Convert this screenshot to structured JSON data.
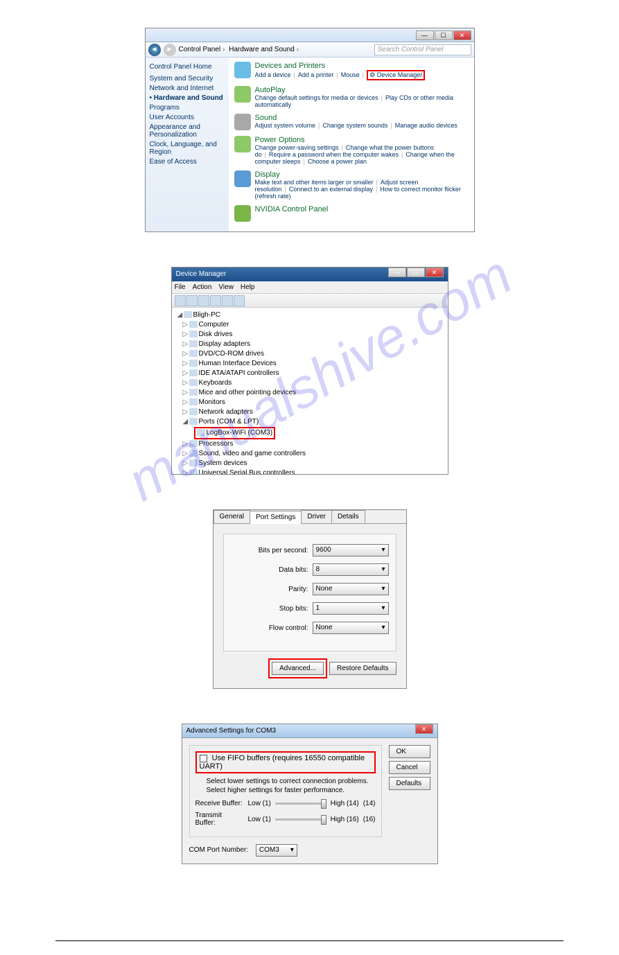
{
  "watermark": "manualshive.com",
  "fig1": {
    "breadcrumb": [
      "Control Panel",
      "Hardware and Sound"
    ],
    "search_placeholder": "Search Control Panel",
    "side_header": "Control Panel Home",
    "side_items": [
      "System and Security",
      "Network and Internet",
      "Hardware and Sound",
      "Programs",
      "User Accounts",
      "Appearance and Personalization",
      "Clock, Language, and Region",
      "Ease of Access"
    ],
    "side_active": 2,
    "categories": [
      {
        "title": "Devices and Printers",
        "icon": "#6bbde6",
        "links": [
          "Add a device",
          "Add a printer",
          "Mouse",
          "Device Manager"
        ],
        "highlight_index": 3
      },
      {
        "title": "AutoPlay",
        "icon": "#8ec967",
        "links": [
          "Change default settings for media or devices",
          "Play CDs or other media automatically"
        ]
      },
      {
        "title": "Sound",
        "icon": "#a8a8a8",
        "links": [
          "Adjust system volume",
          "Change system sounds",
          "Manage audio devices"
        ]
      },
      {
        "title": "Power Options",
        "icon": "#8ec967",
        "links": [
          "Change power-saving settings",
          "Change what the power buttons do",
          "Require a password when the computer wakes",
          "Change when the computer sleeps",
          "Choose a power plan"
        ]
      },
      {
        "title": "Display",
        "icon": "#5b9bd5",
        "links": [
          "Make text and other items larger or smaller",
          "Adjust screen resolution",
          "Connect to an external display",
          "How to correct monitor flicker (refresh rate)"
        ]
      },
      {
        "title": "NVIDIA Control Panel",
        "icon": "#7ab648",
        "links": []
      }
    ]
  },
  "fig2": {
    "title": "Device Manager",
    "menus": [
      "File",
      "Action",
      "View",
      "Help"
    ],
    "root": "Bligh-PC",
    "nodes": [
      "Computer",
      "Disk drives",
      "Display adapters",
      "DVD/CD-ROM drives",
      "Human Interface Devices",
      "IDE ATA/ATAPI controllers",
      "Keyboards",
      "Mice and other pointing devices",
      "Monitors",
      "Network adapters",
      "Ports (COM & LPT)",
      "Processors",
      "Sound, video and game controllers",
      "System devices",
      "Universal Serial Bus controllers"
    ],
    "ports_child": "LogBox-WiFi (COM3)",
    "ports_index": 10
  },
  "fig3": {
    "tabs": [
      "General",
      "Port Settings",
      "Driver",
      "Details"
    ],
    "active_tab": 1,
    "fields": [
      {
        "label": "Bits per second:",
        "value": "9600"
      },
      {
        "label": "Data bits:",
        "value": "8"
      },
      {
        "label": "Parity:",
        "value": "None"
      },
      {
        "label": "Stop bits:",
        "value": "1"
      },
      {
        "label": "Flow control:",
        "value": "None"
      }
    ],
    "btn_advanced": "Advanced...",
    "btn_restore": "Restore Defaults"
  },
  "fig4": {
    "title": "Advanced Settings for COM3",
    "fifo_label": "Use FIFO buffers (requires 16550 compatible UART)",
    "hint1": "Select lower settings to correct connection problems.",
    "hint2": "Select higher settings for faster performance.",
    "rx_label": "Receive Buffer:",
    "rx_low": "Low (1)",
    "rx_high": "High (14)",
    "rx_val": "(14)",
    "tx_label": "Transmit Buffer:",
    "tx_low": "Low (1)",
    "tx_high": "High (16)",
    "tx_val": "(16)",
    "port_label": "COM Port Number:",
    "port_value": "COM3",
    "btn_ok": "OK",
    "btn_cancel": "Cancel",
    "btn_defaults": "Defaults"
  }
}
